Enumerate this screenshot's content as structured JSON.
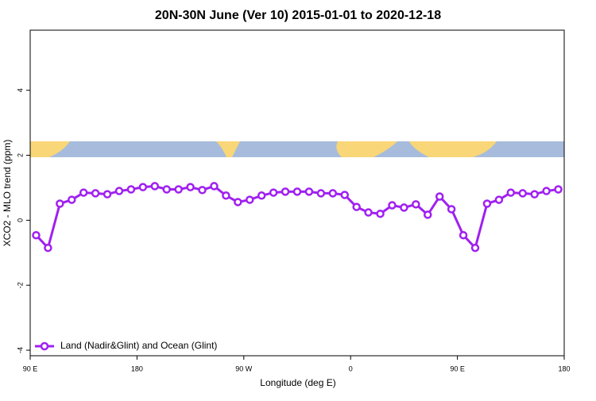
{
  "chart_data": {
    "type": "line",
    "title": "20N-30N June (Ver 10)   2015-01-01 to 2020-12-18",
    "x_label": "Longitude (deg E)",
    "y_label": "XCO2 - MLO trend (ppm)",
    "x": [
      95,
      105,
      115,
      125,
      135,
      145,
      155,
      165,
      175,
      185,
      195,
      205,
      215,
      225,
      235,
      245,
      255,
      265,
      275,
      285,
      295,
      305,
      315,
      325,
      335,
      345,
      355,
      365,
      375,
      385,
      395,
      405,
      415,
      425,
      435,
      445,
      455,
      465,
      475,
      485,
      495,
      505,
      515,
      525,
      535
    ],
    "series": [
      {
        "name": "Land (Nadir&Glint) and Ocean (Glint)",
        "color": "#a020f0",
        "values": [
          -0.46,
          -0.85,
          0.51,
          0.63,
          0.85,
          0.83,
          0.8,
          0.9,
          0.95,
          1.02,
          1.05,
          0.95,
          0.95,
          1.02,
          0.93,
          1.05,
          0.76,
          0.56,
          0.63,
          0.76,
          0.85,
          0.88,
          0.88,
          0.88,
          0.83,
          0.83,
          0.78,
          0.41,
          0.24,
          0.2,
          0.46,
          0.39,
          0.49,
          0.17,
          0.73,
          0.34,
          -0.46,
          -0.85,
          0.51,
          0.63,
          0.85,
          0.83,
          0.8,
          0.9,
          0.95
        ]
      }
    ],
    "xlim": [
      90,
      540
    ],
    "xticks": [
      {
        "value": 90,
        "label": "90 E"
      },
      {
        "value": 180,
        "label": "180"
      },
      {
        "value": 270,
        "label": "90 W"
      },
      {
        "value": 360,
        "label": "0"
      },
      {
        "value": 450,
        "label": "90 E"
      },
      {
        "value": 540,
        "label": "180"
      }
    ],
    "ylim": [
      -4.17,
      5.85
    ],
    "yticks": [
      -4,
      -2,
      0,
      2,
      4
    ],
    "legend": "bottom-left"
  }
}
